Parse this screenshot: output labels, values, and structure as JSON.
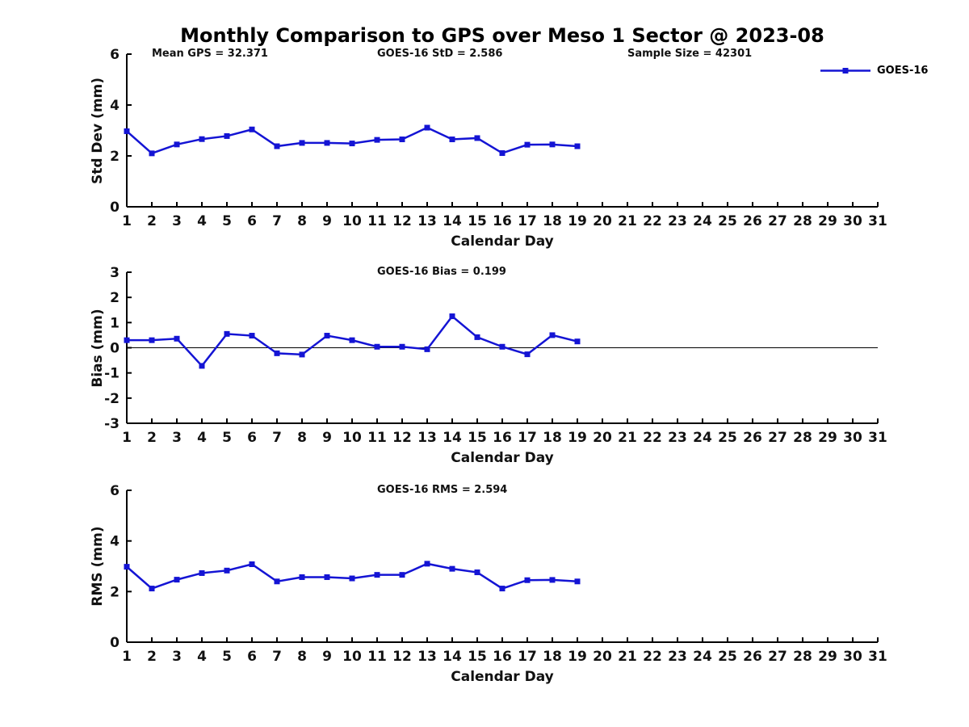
{
  "title": "Monthly Comparison to GPS over Meso 1 Sector @ 2023-08",
  "legend": {
    "label": "GOES-16",
    "position": "top-right"
  },
  "series_color": "#1414d4",
  "axis_color": "#000000",
  "chart_data": [
    {
      "type": "line",
      "name": "std-dev",
      "series_name": "GOES-16",
      "ylabel": "Std Dev (mm)",
      "xlabel": "Calendar Day",
      "annotations": [
        {
          "text": "Mean GPS = 32.371",
          "xfrac": 0.033
        },
        {
          "text": "GOES-16 StD = 2.586",
          "xfrac": 0.333
        },
        {
          "text": "Sample Size = 42301",
          "xfrac": 0.667
        }
      ],
      "xlim": [
        1,
        31
      ],
      "ylim": [
        0,
        6
      ],
      "xticks": [
        1,
        2,
        3,
        4,
        5,
        6,
        7,
        8,
        9,
        10,
        11,
        12,
        13,
        14,
        15,
        16,
        17,
        18,
        19,
        20,
        21,
        22,
        23,
        24,
        25,
        26,
        27,
        28,
        29,
        30,
        31
      ],
      "yticks": [
        0,
        2,
        4,
        6
      ],
      "grid": false,
      "zero_line": false,
      "x": [
        1,
        2,
        3,
        4,
        5,
        6,
        7,
        8,
        9,
        10,
        11,
        12,
        13,
        14,
        15,
        16,
        17,
        18,
        19
      ],
      "values": [
        2.97,
        2.1,
        2.45,
        2.66,
        2.78,
        3.04,
        2.38,
        2.51,
        2.51,
        2.49,
        2.63,
        2.65,
        3.11,
        2.65,
        2.7,
        2.11,
        2.44,
        2.45,
        2.38
      ]
    },
    {
      "type": "line",
      "name": "bias",
      "series_name": "GOES-16",
      "ylabel": "Bias (mm)",
      "xlabel": "Calendar Day",
      "annotations": [
        {
          "text": "GOES-16 Bias = 0.199",
          "xfrac": 0.333
        }
      ],
      "xlim": [
        1,
        31
      ],
      "ylim": [
        -3,
        3
      ],
      "xticks": [
        1,
        2,
        3,
        4,
        5,
        6,
        7,
        8,
        9,
        10,
        11,
        12,
        13,
        14,
        15,
        16,
        17,
        18,
        19,
        20,
        21,
        22,
        23,
        24,
        25,
        26,
        27,
        28,
        29,
        30,
        31
      ],
      "yticks": [
        3,
        2,
        1,
        0,
        -1,
        -2,
        -3
      ],
      "grid": false,
      "zero_line": true,
      "x": [
        1,
        2,
        3,
        4,
        5,
        6,
        7,
        8,
        9,
        10,
        11,
        12,
        13,
        14,
        15,
        16,
        17,
        18,
        19
      ],
      "values": [
        0.3,
        0.3,
        0.36,
        -0.72,
        0.55,
        0.48,
        -0.22,
        -0.27,
        0.48,
        0.3,
        0.04,
        0.04,
        -0.06,
        1.25,
        0.42,
        0.04,
        -0.26,
        0.5,
        0.25
      ]
    },
    {
      "type": "line",
      "name": "rms",
      "series_name": "GOES-16",
      "ylabel": "RMS (mm)",
      "xlabel": "Calendar Day",
      "annotations": [
        {
          "text": "GOES-16 RMS = 2.594",
          "xfrac": 0.333
        }
      ],
      "xlim": [
        1,
        31
      ],
      "ylim": [
        0,
        6
      ],
      "xticks": [
        1,
        2,
        3,
        4,
        5,
        6,
        7,
        8,
        9,
        10,
        11,
        12,
        13,
        14,
        15,
        16,
        17,
        18,
        19,
        20,
        21,
        22,
        23,
        24,
        25,
        26,
        27,
        28,
        29,
        30,
        31
      ],
      "yticks": [
        0,
        2,
        4,
        6
      ],
      "grid": false,
      "zero_line": false,
      "x": [
        1,
        2,
        3,
        4,
        5,
        6,
        7,
        8,
        9,
        10,
        11,
        12,
        13,
        14,
        15,
        16,
        17,
        18,
        19
      ],
      "values": [
        2.98,
        2.12,
        2.47,
        2.73,
        2.83,
        3.08,
        2.4,
        2.57,
        2.57,
        2.52,
        2.66,
        2.66,
        3.1,
        2.9,
        2.76,
        2.12,
        2.45,
        2.46,
        2.4
      ]
    }
  ]
}
